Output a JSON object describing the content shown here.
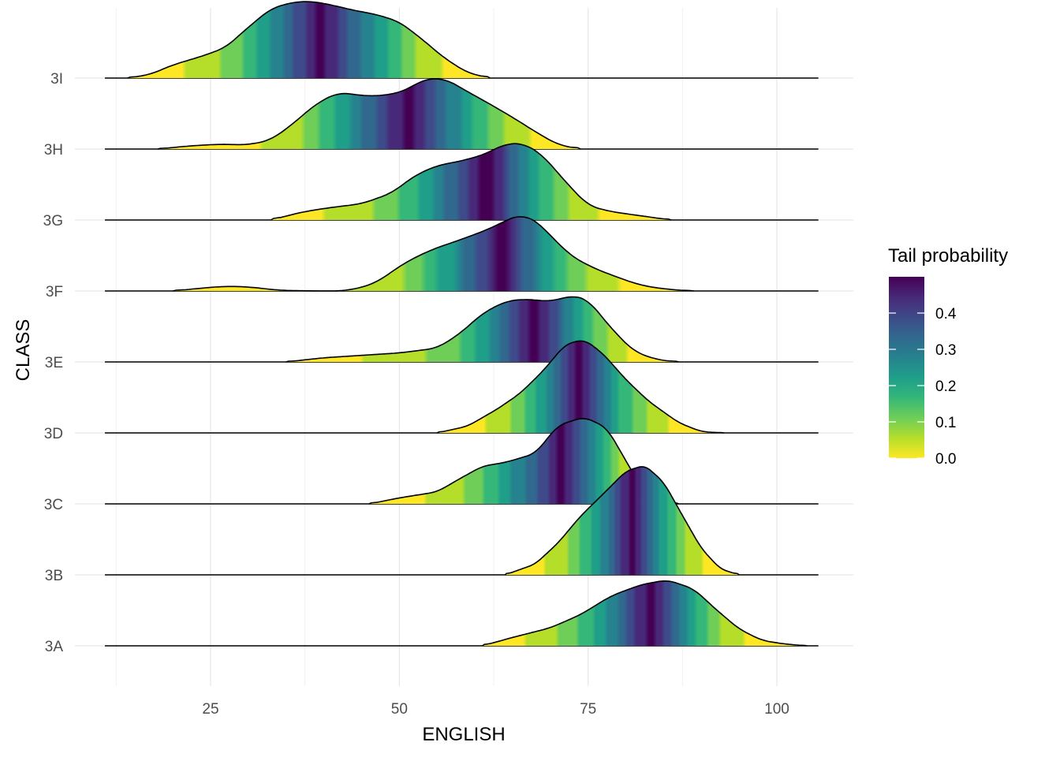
{
  "chart_data": {
    "type": "area",
    "subtype": "density-ridgeline",
    "xlabel": "ENGLISH",
    "ylabel": "CLASS",
    "xlim": [
      11.5,
      106.5
    ],
    "xticks": [
      25,
      50,
      75,
      100
    ],
    "x_gridlines_minor": [
      12.5,
      37.5,
      62.5,
      87.5
    ],
    "grid": true,
    "categories": [
      "3A",
      "3B",
      "3C",
      "3D",
      "3E",
      "3F",
      "3G",
      "3H",
      "3I"
    ],
    "baseline_span": [
      11,
      105.5
    ],
    "fill_legend": {
      "title": "Tail probability",
      "ticks": [
        0.0,
        0.1,
        0.2,
        0.3,
        0.4
      ],
      "tick_labels": [
        "0.0",
        "0.1",
        "0.2",
        "0.3",
        "0.4"
      ],
      "range": [
        0,
        0.5
      ],
      "palette": "viridis-reversed",
      "colors": [
        "#FDE725",
        "#B5DE2B",
        "#6ECE58",
        "#35B779",
        "#1F9E89",
        "#26828E",
        "#31688E",
        "#3E4A89",
        "#482878",
        "#440154"
      ],
      "position": "right"
    },
    "series": [
      {
        "name": "3A",
        "x": [
          61,
          65,
          70,
          74,
          78,
          82,
          85.5,
          89,
          92,
          95,
          98,
          101,
          104
        ],
        "density": [
          0.0,
          0.14,
          0.3,
          0.52,
          0.83,
          1.02,
          1.1,
          0.95,
          0.6,
          0.28,
          0.09,
          0.03,
          0.0
        ]
      },
      {
        "name": "3B",
        "x": [
          64,
          68,
          71,
          74,
          77,
          80,
          82.5,
          85,
          87.5,
          90,
          92.5,
          95
        ],
        "density": [
          0.0,
          0.18,
          0.53,
          0.98,
          1.35,
          1.73,
          1.83,
          1.55,
          0.99,
          0.44,
          0.1,
          0.0
        ]
      },
      {
        "name": "3C",
        "x": [
          46,
          50,
          55,
          58,
          61,
          64,
          68,
          71,
          74.5,
          77.5,
          80,
          83,
          87
        ],
        "density": [
          0.0,
          0.1,
          0.2,
          0.42,
          0.63,
          0.69,
          0.84,
          1.31,
          1.45,
          1.27,
          0.72,
          0.07,
          0.0
        ]
      },
      {
        "name": "3D",
        "x": [
          55,
          59,
          63,
          66,
          69,
          72,
          74.5,
          77,
          80,
          83,
          87,
          90,
          93
        ],
        "density": [
          0.0,
          0.11,
          0.4,
          0.66,
          1.03,
          1.48,
          1.56,
          1.32,
          0.89,
          0.53,
          0.17,
          0.02,
          0.0
        ]
      },
      {
        "name": "3E",
        "x": [
          35,
          40,
          45,
          50,
          55,
          58,
          61,
          64,
          66.5,
          70,
          73,
          75,
          78,
          81,
          84,
          87
        ],
        "density": [
          0.0,
          0.07,
          0.11,
          0.15,
          0.23,
          0.47,
          0.81,
          1.01,
          1.05,
          1.01,
          1.11,
          1.04,
          0.57,
          0.18,
          0.04,
          0.0
        ]
      },
      {
        "name": "3F",
        "x": [
          20,
          24,
          27,
          30,
          34,
          39,
          43,
          47,
          50,
          54,
          58,
          62,
          65,
          66.5,
          69,
          72,
          75,
          78,
          82,
          86,
          89
        ],
        "density": [
          0.0,
          0.05,
          0.08,
          0.07,
          0.01,
          0.0,
          0.0,
          0.13,
          0.42,
          0.68,
          0.85,
          1.04,
          1.23,
          1.3,
          1.08,
          0.65,
          0.42,
          0.27,
          0.09,
          0.02,
          0.0
        ]
      },
      {
        "name": "3G",
        "x": [
          33,
          37,
          41,
          45,
          49,
          52,
          55,
          58,
          61,
          64,
          66.5,
          69,
          72,
          75,
          78,
          82,
          86
        ],
        "density": [
          0.0,
          0.13,
          0.21,
          0.27,
          0.45,
          0.74,
          0.91,
          0.98,
          1.08,
          1.27,
          1.28,
          1.08,
          0.64,
          0.24,
          0.14,
          0.07,
          0.0
        ]
      },
      {
        "name": "3H",
        "x": [
          18,
          22,
          26,
          30,
          33,
          36,
          39,
          42,
          45,
          48,
          51,
          53,
          56,
          59,
          62,
          65,
          68,
          71,
          74
        ],
        "density": [
          0.0,
          0.05,
          0.08,
          0.07,
          0.15,
          0.43,
          0.76,
          0.95,
          0.89,
          0.89,
          0.98,
          1.16,
          1.18,
          0.96,
          0.75,
          0.53,
          0.29,
          0.07,
          0.0
        ]
      },
      {
        "name": "3I",
        "x": [
          14,
          17,
          20,
          24,
          27,
          30,
          33,
          36,
          38.5,
          41,
          44,
          47,
          50,
          53,
          56,
          59,
          62
        ],
        "density": [
          0.0,
          0.06,
          0.22,
          0.37,
          0.51,
          0.85,
          1.16,
          1.27,
          1.28,
          1.22,
          1.13,
          1.06,
          0.94,
          0.65,
          0.33,
          0.09,
          0.0
        ]
      }
    ]
  }
}
